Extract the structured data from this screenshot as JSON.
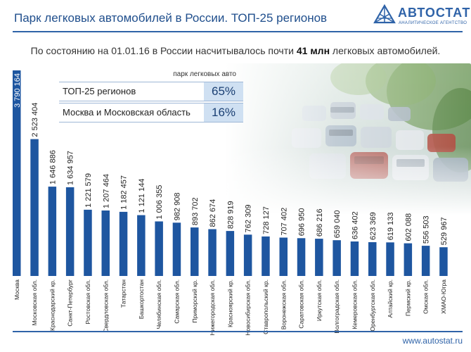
{
  "header": {
    "title": "Парк легковых автомобилей в России. ТОП-25 регионов",
    "logo_name": "АВТОСТАТ",
    "logo_tagline": "АНАЛИТИЧЕСКОЕ АГЕНТСТВО"
  },
  "subtitle": {
    "prefix": "По состоянию на 01.01.16 в России насчитывалось почти",
    "highlight": "41 млн",
    "suffix": "легковых автомобилей."
  },
  "inset": {
    "header": "парк легковых авто",
    "rows": [
      {
        "label": "ТОП-25 регионов",
        "value": "65%"
      },
      {
        "label": "Москва и Московская область",
        "value": "16%"
      }
    ]
  },
  "footer": {
    "site": "www.autostat.ru"
  },
  "colors": {
    "bar": "#1e56a0",
    "accent": "#2f63a8",
    "inset_fill": "#cfe0f2"
  },
  "chart_data": {
    "type": "bar",
    "title": "Парк легковых автомобилей в России. ТОП-25 регионов",
    "xlabel": "",
    "ylabel": "",
    "ylim": [
      0,
      3790164
    ],
    "categories": [
      "Москва",
      "Московская обл.",
      "Краснодарский кр.",
      "Санкт-Петербург",
      "Ростовская обл.",
      "Свердловская обл.",
      "Татарстан",
      "Башкортостан",
      "Челябинская обл.",
      "Самарская обл.",
      "Приморский кр.",
      "Нижегородская обл.",
      "Красноярский кр.",
      "Новосибирская обл.",
      "Ставропольский кр.",
      "Воронежская обл.",
      "Саратовская обл.",
      "Иркутская обл.",
      "Волгоградская обл.",
      "Кемеровская обл.",
      "Оренбургская обл.",
      "Алтайский кр.",
      "Пермский кр.",
      "Омская обл.",
      "ХМАО-Югра"
    ],
    "values": [
      3790164,
      2523404,
      1646886,
      1634957,
      1221579,
      1207464,
      1182457,
      1121144,
      1006355,
      982908,
      893702,
      862674,
      828919,
      762309,
      728127,
      707402,
      696950,
      686216,
      659040,
      636402,
      623369,
      619133,
      602088,
      556503,
      529967
    ],
    "value_labels": [
      "3 790 164",
      "2 523 404",
      "1 646 886",
      "1 634 957",
      "1 221 579",
      "1 207 464",
      "1 182 457",
      "1 121 144",
      "1 006 355",
      "982 908",
      "893 702",
      "862 674",
      "828 919",
      "762 309",
      "728 127",
      "707 402",
      "696 950",
      "686 216",
      "659 040",
      "636 402",
      "623 369",
      "619 133",
      "602 088",
      "556 503",
      "529 967"
    ]
  }
}
